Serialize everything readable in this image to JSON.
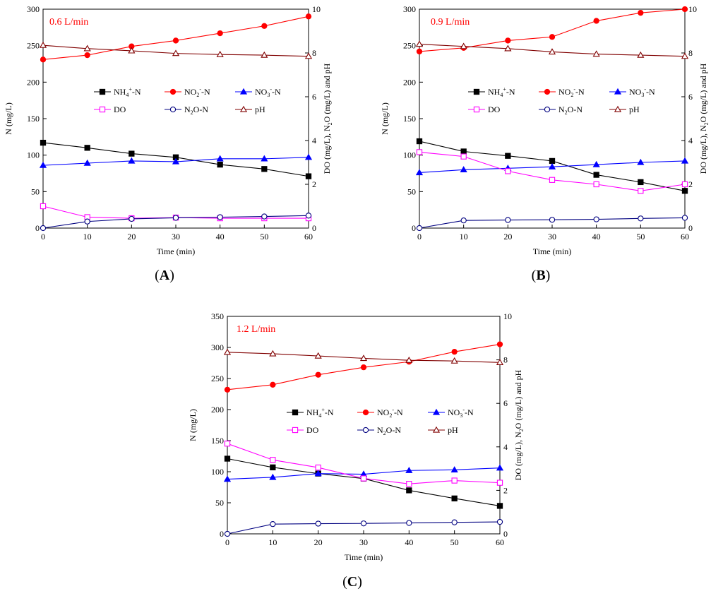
{
  "figure": {
    "panels": [
      {
        "id": "A",
        "panel_label": "(A)",
        "flow_label": "0.6 L/min",
        "xlabel": "Time (min)",
        "ylabel_left": "N (mg/L)",
        "ylabel_right": "DO (mg/L), N2O (mg/L) and pH"
      },
      {
        "id": "B",
        "panel_label": "(B)",
        "flow_label": "0.9 L/min",
        "xlabel": "Time (min)",
        "ylabel_left": "N (mg/L)",
        "ylabel_right": "DO (mg/L), N2O (mg/L) and pH"
      },
      {
        "id": "C",
        "panel_label": "(C)",
        "flow_label": "1.2 L/min",
        "xlabel": "Time (min)",
        "ylabel_left": "N (mg/L)",
        "ylabel_right": "DO (mg/L), N2O (mg/L) and pH"
      }
    ],
    "colors": {
      "nh4": "#000000",
      "no2": "#ff0000",
      "no3": "#0000ff",
      "do": "#ff00ff",
      "n2o": "#000080",
      "ph": "#800000",
      "flow_label": "#ff0000"
    }
  },
  "chart_data": [
    {
      "type": "line",
      "panel": "A",
      "x": [
        0,
        10,
        20,
        30,
        40,
        50,
        60
      ],
      "xlim": [
        0,
        60
      ],
      "ylim_left": [
        0,
        300
      ],
      "ylim_right": [
        0,
        10
      ],
      "xticks": [
        0,
        10,
        20,
        30,
        40,
        50,
        60
      ],
      "yticks_left": [
        0,
        50,
        100,
        150,
        200,
        250,
        300
      ],
      "yticks_right": [
        0,
        2,
        4,
        6,
        8,
        10
      ],
      "grid": false,
      "legend_position": "center",
      "series": [
        {
          "key": "nh4",
          "name": "NH4+-N",
          "axis": "left",
          "marker": "square-filled",
          "values": [
            117,
            110,
            102,
            97,
            87,
            81,
            71
          ]
        },
        {
          "key": "no2",
          "name": "NO2--N",
          "axis": "left",
          "marker": "circle-filled",
          "values": [
            231,
            237,
            249,
            257,
            267,
            277,
            290
          ]
        },
        {
          "key": "no3",
          "name": "NO3--N",
          "axis": "left",
          "marker": "triangle-filled",
          "values": [
            86,
            89,
            92,
            91,
            95,
            95,
            97
          ]
        },
        {
          "key": "do",
          "name": "DO",
          "axis": "right",
          "marker": "square-open",
          "values": [
            1.0,
            0.5,
            0.45,
            0.48,
            0.45,
            0.45,
            0.45
          ]
        },
        {
          "key": "n2o",
          "name": "N2O-N",
          "axis": "right",
          "marker": "circle-open",
          "values": [
            0.0,
            0.3,
            0.42,
            0.47,
            0.5,
            0.53,
            0.57
          ]
        },
        {
          "key": "ph",
          "name": "pH",
          "axis": "right",
          "marker": "triangle-open",
          "values": [
            8.35,
            8.2,
            8.1,
            7.98,
            7.93,
            7.9,
            7.85
          ]
        }
      ]
    },
    {
      "type": "line",
      "panel": "B",
      "x": [
        0,
        10,
        20,
        30,
        40,
        50,
        60
      ],
      "xlim": [
        0,
        60
      ],
      "ylim_left": [
        0,
        300
      ],
      "ylim_right": [
        0,
        10
      ],
      "xticks": [
        0,
        10,
        20,
        30,
        40,
        50,
        60
      ],
      "yticks_left": [
        0,
        50,
        100,
        150,
        200,
        250,
        300
      ],
      "yticks_right": [
        0,
        2,
        4,
        6,
        8,
        10
      ],
      "grid": false,
      "legend_position": "center",
      "series": [
        {
          "key": "nh4",
          "name": "NH4+-N",
          "axis": "left",
          "marker": "square-filled",
          "values": [
            119,
            105,
            99,
            92,
            73,
            63,
            51
          ]
        },
        {
          "key": "no2",
          "name": "NO2--N",
          "axis": "left",
          "marker": "circle-filled",
          "values": [
            242,
            247,
            257,
            262,
            284,
            295,
            300
          ]
        },
        {
          "key": "no3",
          "name": "NO3--N",
          "axis": "left",
          "marker": "triangle-filled",
          "values": [
            76,
            80,
            82,
            84,
            87,
            90,
            92
          ]
        },
        {
          "key": "do",
          "name": "DO",
          "axis": "right",
          "marker": "square-open",
          "values": [
            3.47,
            3.27,
            2.6,
            2.2,
            2.0,
            1.7,
            2.0
          ]
        },
        {
          "key": "n2o",
          "name": "N2O-N",
          "axis": "right",
          "marker": "circle-open",
          "values": [
            0.0,
            0.35,
            0.37,
            0.38,
            0.4,
            0.44,
            0.47
          ]
        },
        {
          "key": "ph",
          "name": "pH",
          "axis": "right",
          "marker": "triangle-open",
          "values": [
            8.4,
            8.3,
            8.2,
            8.05,
            7.95,
            7.9,
            7.85
          ]
        }
      ]
    },
    {
      "type": "line",
      "panel": "C",
      "x": [
        0,
        10,
        20,
        30,
        40,
        50,
        60
      ],
      "xlim": [
        0,
        60
      ],
      "ylim_left": [
        0,
        350
      ],
      "ylim_right": [
        0,
        10
      ],
      "xticks": [
        0,
        10,
        20,
        30,
        40,
        50,
        60
      ],
      "yticks_left": [
        0,
        50,
        100,
        150,
        200,
        250,
        300,
        350
      ],
      "yticks_right": [
        0,
        2,
        4,
        6,
        8,
        10
      ],
      "grid": false,
      "legend_position": "center",
      "series": [
        {
          "key": "nh4",
          "name": "NH4+-N",
          "axis": "left",
          "marker": "square-filled",
          "values": [
            121,
            107,
            97,
            89,
            70,
            57,
            45
          ]
        },
        {
          "key": "no2",
          "name": "NO2--N",
          "axis": "left",
          "marker": "circle-filled",
          "values": [
            232,
            240,
            256,
            268,
            277,
            293,
            305
          ]
        },
        {
          "key": "no3",
          "name": "NO3--N",
          "axis": "left",
          "marker": "triangle-filled",
          "values": [
            88,
            91,
            97,
            96,
            102,
            103,
            106
          ]
        },
        {
          "key": "do",
          "name": "DO",
          "axis": "right",
          "marker": "square-open",
          "values": [
            4.15,
            3.4,
            3.05,
            2.55,
            2.3,
            2.45,
            2.35
          ]
        },
        {
          "key": "n2o",
          "name": "N2O-N",
          "axis": "right",
          "marker": "circle-open",
          "values": [
            0.0,
            0.45,
            0.47,
            0.48,
            0.5,
            0.53,
            0.55
          ]
        },
        {
          "key": "ph",
          "name": "pH",
          "axis": "right",
          "marker": "triangle-open",
          "values": [
            8.35,
            8.28,
            8.18,
            8.07,
            7.98,
            7.95,
            7.88
          ]
        }
      ]
    }
  ]
}
